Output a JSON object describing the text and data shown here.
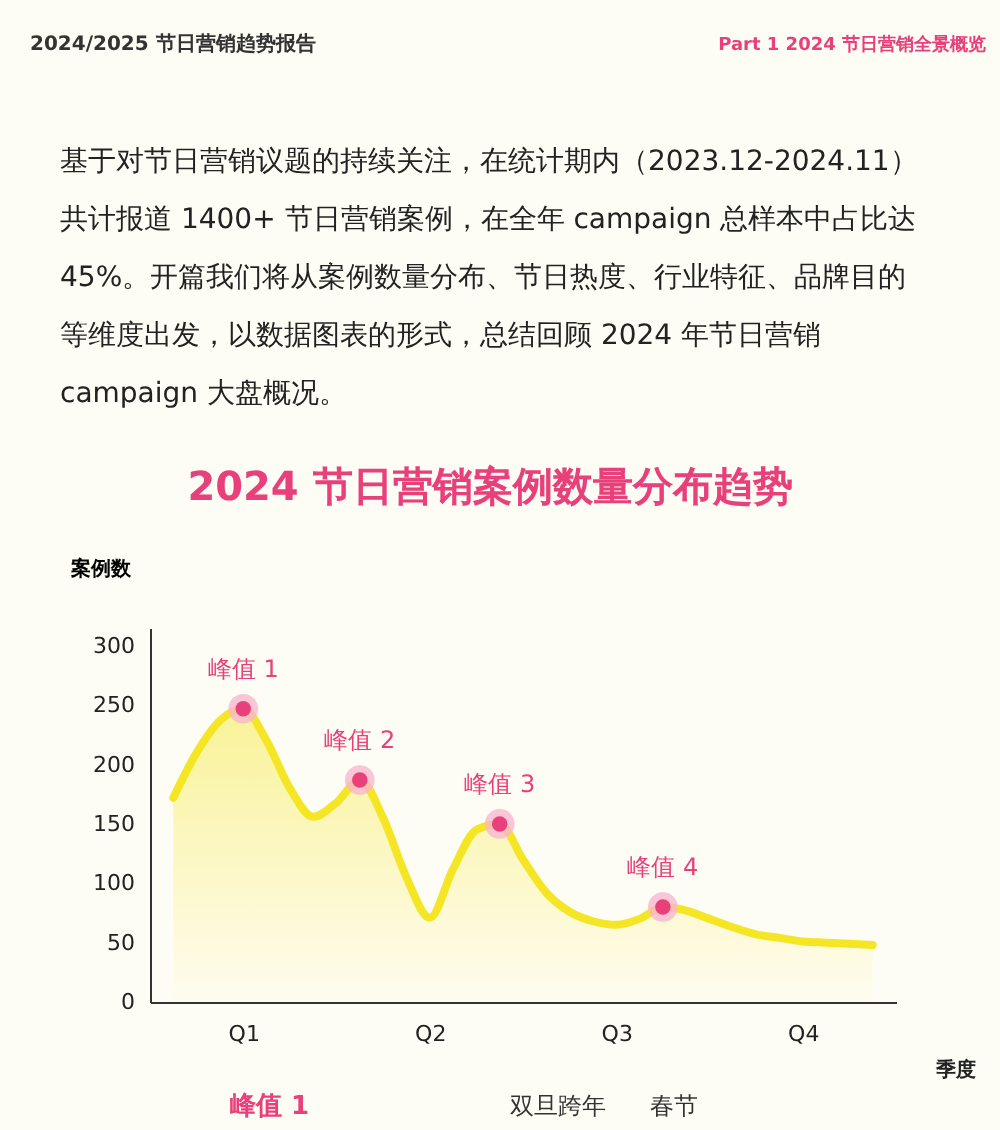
{
  "chart_data": {
    "type": "area",
    "title": "2024 节日营销案例数量分布趋势",
    "subtitle": "基于对节日营销议题的持续关注，在统计期内（2023.12-2024.11）共计报道 1400+ 节日营销案例，在全年 campaign 总样本中占比达 45%。开篇我们将从案例数量分布、节日热度、行业特征、品牌目的等维度出发，以数据图表的形式，总结回顾 2024 年节日营销 campaign 大盘概况。",
    "xlabel": "季度",
    "ylabel": "案例数",
    "categories": [
      null,
      null,
      null,
      "Q1",
      null,
      null,
      null,
      null,
      null,
      null,
      null,
      "Q2",
      null,
      null,
      null,
      null,
      null,
      null,
      null,
      "Q3",
      null,
      null,
      null,
      null,
      null,
      null,
      null,
      "Q4",
      null,
      null,
      null
    ],
    "ylim": [
      0,
      315
    ],
    "yticks": [
      0,
      50,
      100,
      150,
      200,
      250,
      300
    ],
    "grid": false,
    "series": [
      {
        "color": "#f5e625",
        "values": [
          172,
          210,
          237,
          247,
          220,
          180,
          156,
          168,
          187,
          155,
          105,
          71,
          112,
          145,
          150,
          120,
          92,
          76,
          68,
          65,
          70,
          80,
          77,
          70,
          63,
          57,
          54,
          51,
          50,
          49,
          48
        ]
      },
      {
        "type": "scatter",
        "color": "#e8407a",
        "marker": "circle",
        "values": [
          null,
          null,
          null,
          247,
          null,
          null,
          null,
          null,
          187,
          null,
          null,
          null,
          null,
          null,
          150,
          null,
          null,
          null,
          null,
          null,
          null,
          80,
          null,
          null,
          null,
          null,
          null,
          null,
          null,
          null,
          null
        ],
        "value_labels": [
          null,
          null,
          null,
          "峰值 1",
          null,
          null,
          null,
          null,
          "峰值 2",
          null,
          null,
          null,
          null,
          null,
          "峰值 3",
          null,
          null,
          null,
          null,
          null,
          null,
          "峰值 4",
          null,
          null,
          null,
          null,
          null,
          null,
          null,
          null,
          null
        ]
      }
    ],
    "annotations": [
      "2024/2025 节日营销趋势报告",
      "Part 1 2024 节日营销全景概览",
      "峰值 1",
      "双旦跨年",
      "春节"
    ]
  }
}
